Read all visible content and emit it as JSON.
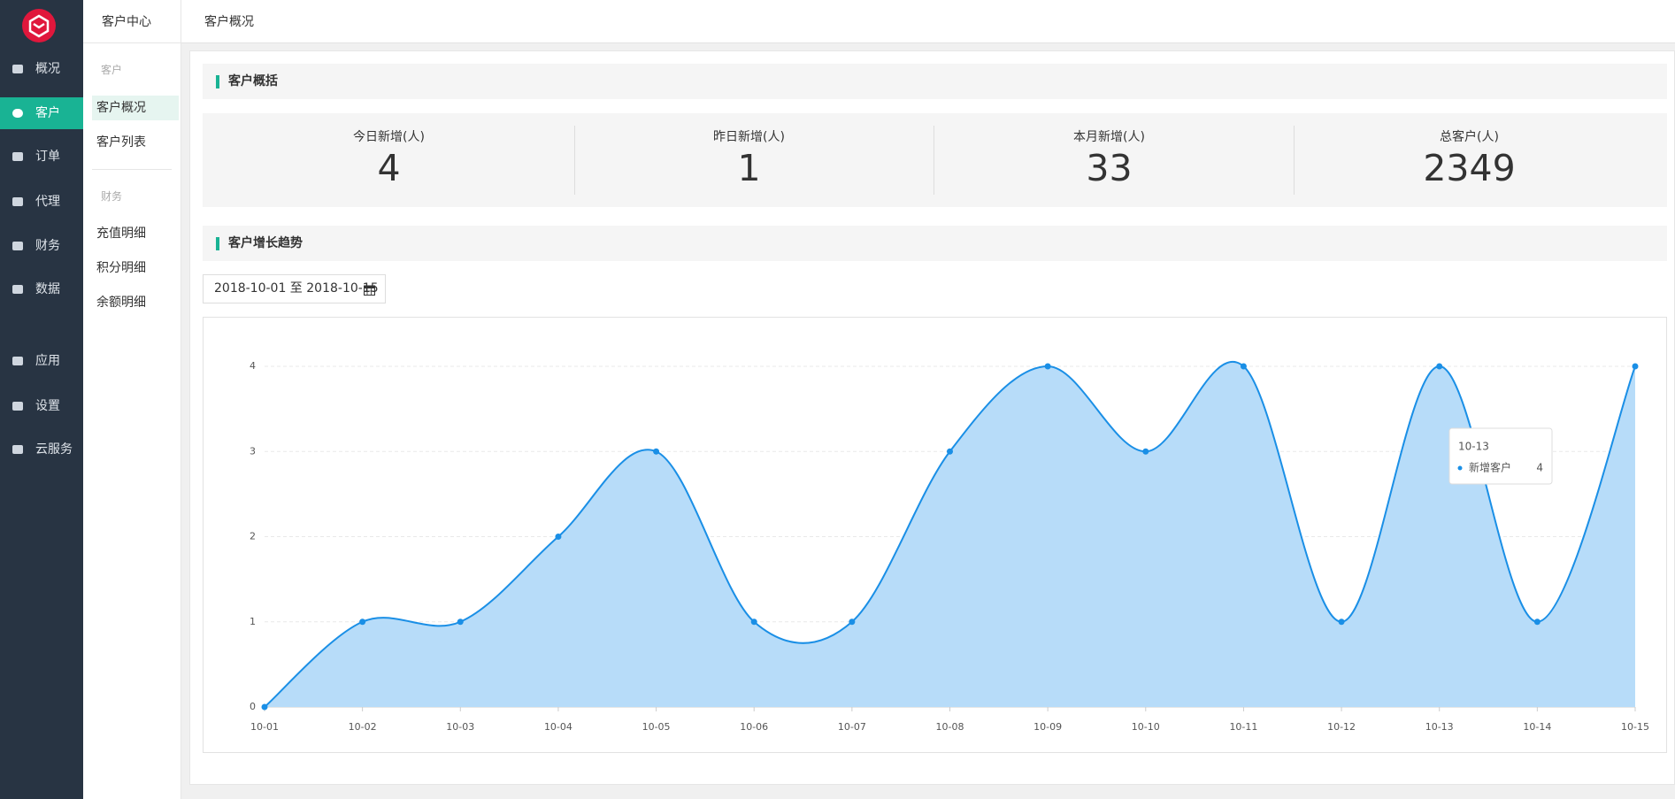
{
  "sidebar": {
    "menu": [
      "概况",
      "客户",
      "订单",
      "代理",
      "财务",
      "数据",
      "应用",
      "设置",
      "云服务"
    ]
  },
  "subnav": {
    "title": "客户中心",
    "groups": [
      {
        "label": "客户",
        "items": [
          "客户概况",
          "客户列表"
        ]
      },
      {
        "label": "财务",
        "items": [
          "充值明细",
          "积分明细",
          "余额明细"
        ]
      }
    ]
  },
  "breadcrumb": "客户概况",
  "summary": {
    "title": "客户概括",
    "stats": [
      {
        "label": "今日新增(人)",
        "value": 4
      },
      {
        "label": "昨日新增(人)",
        "value": 1
      },
      {
        "label": "本月新增(人)",
        "value": 33
      },
      {
        "label": "总客户(人)",
        "value": 2349
      }
    ]
  },
  "trend": {
    "title": "客户增长趋势",
    "date_range": "2018-10-01 至 2018-10-15"
  },
  "chart_data": {
    "type": "line",
    "categories": [
      "10-01",
      "10-02",
      "10-03",
      "10-04",
      "10-05",
      "10-06",
      "10-07",
      "10-08",
      "10-09",
      "10-10",
      "10-11",
      "10-12",
      "10-13",
      "10-14",
      "10-15"
    ],
    "series": [
      {
        "name": "新增客户",
        "color": "#1a8fe6",
        "values": [
          0,
          1,
          1,
          2,
          3,
          1,
          1,
          3,
          4,
          3,
          4,
          1,
          4,
          1,
          4
        ]
      }
    ],
    "ylim": [
      0,
      4
    ],
    "yticks": [
      0,
      1,
      2,
      3,
      4
    ],
    "grid": true,
    "smooth": true,
    "area": true,
    "area_color": "#b7dcf9",
    "tooltip_index": 12
  }
}
